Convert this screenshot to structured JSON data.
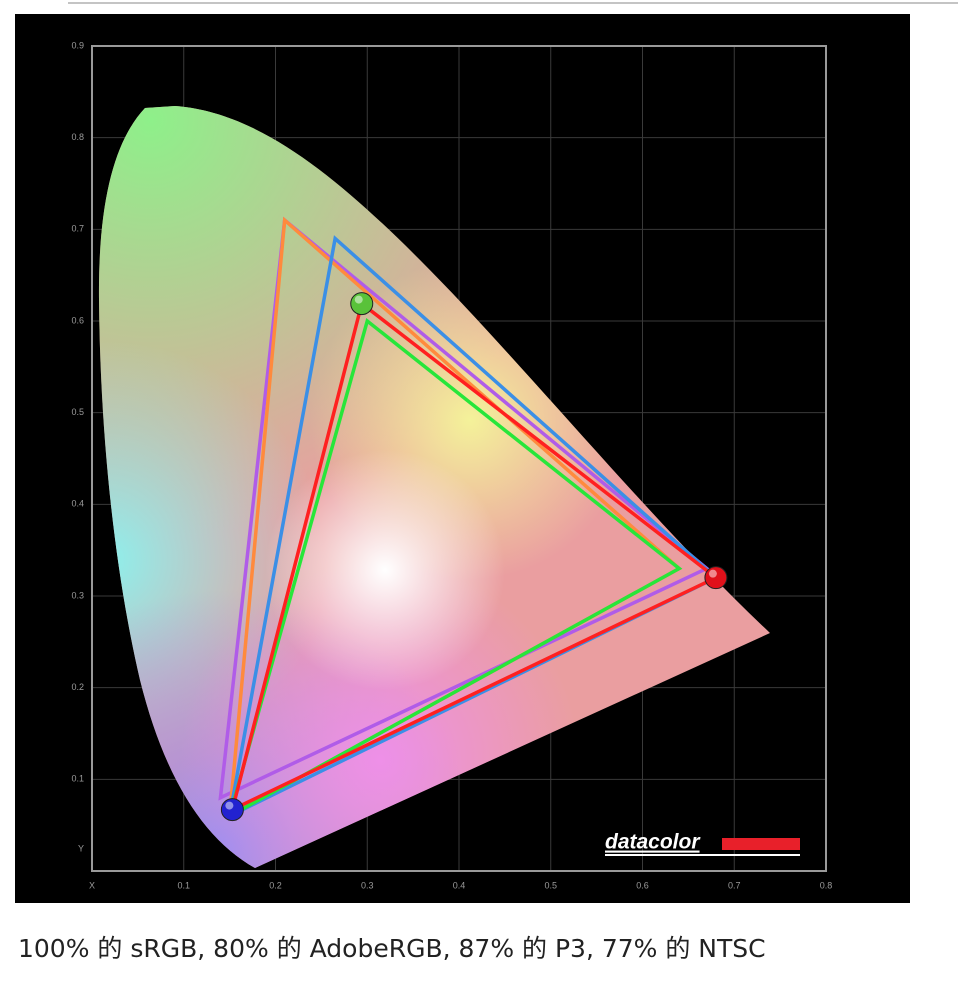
{
  "chart_data": {
    "type": "gamut",
    "xlim": [
      0,
      0.8
    ],
    "ylim": [
      0,
      0.9
    ],
    "xticks": [
      {
        "value": 0,
        "label": "X"
      },
      0.1,
      0.2,
      0.3,
      0.4,
      0.5,
      0.6,
      0.7,
      0.8
    ],
    "yticks": [
      {
        "value": 0,
        "label": "Y"
      },
      0.1,
      0.2,
      0.3,
      0.4,
      0.5,
      0.6,
      0.7,
      0.8,
      0.9
    ],
    "grid": true,
    "series": [
      {
        "color": "#b05ce8",
        "x": [
          0.67,
          0.21,
          0.14
        ],
        "y": [
          0.33,
          0.71,
          0.08
        ]
      },
      {
        "color": "#ff8a3d",
        "x": [
          0.64,
          0.21,
          0.15
        ],
        "y": [
          0.33,
          0.71,
          0.06
        ]
      },
      {
        "color": "#3b8fe6",
        "x": [
          0.68,
          0.265,
          0.15
        ],
        "y": [
          0.32,
          0.69,
          0.06
        ]
      },
      {
        "color": "#27e63a",
        "x": [
          0.64,
          0.3,
          0.15
        ],
        "y": [
          0.33,
          0.6,
          0.06
        ]
      },
      {
        "color": "#ff2020",
        "x": [
          0.68,
          0.294,
          0.153
        ],
        "y": [
          0.32,
          0.619,
          0.067
        ],
        "markers": [
          "#e0101a",
          "#59c23a",
          "#2222d0"
        ]
      }
    ],
    "logo": "datacolor",
    "caption": "100% 的 sRGB, 80% 的 AdobeRGB, 87% 的 P3, 77% 的 NTSC"
  }
}
